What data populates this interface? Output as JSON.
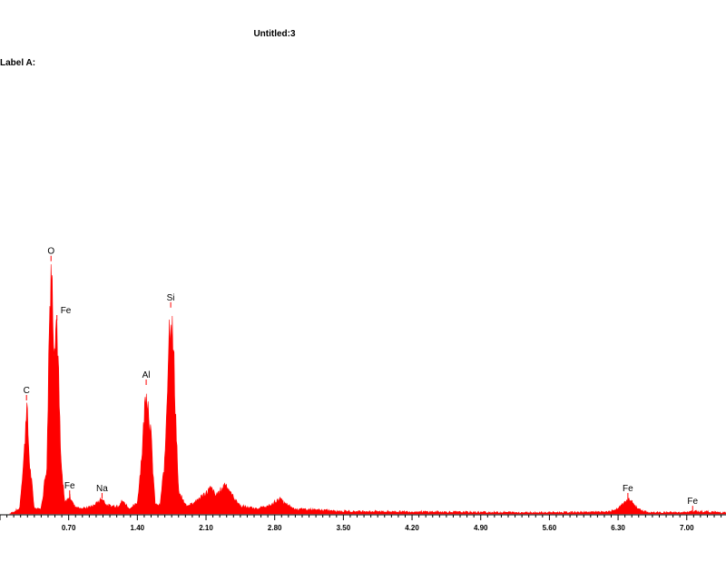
{
  "window": {
    "title": "Untitled:3",
    "label": "Label A:"
  },
  "colors": {
    "spectrum": "#ff0000",
    "axis": "#000000",
    "background": "#ffffff"
  },
  "chart_data": {
    "type": "area",
    "title": "Untitled:3",
    "xlabel": "",
    "ylabel": "",
    "xlim": [
      0.0,
      7.4
    ],
    "ylim": [
      0,
      100
    ],
    "x_ticks": [
      0.7,
      1.4,
      2.1,
      2.8,
      3.5,
      4.2,
      4.9,
      5.6,
      6.3,
      7.0
    ],
    "x_tick_labels": [
      "0.70",
      "1.40",
      "2.10",
      "2.80",
      "3.50",
      "4.20",
      "4.90",
      "5.60",
      "6.30",
      "7.00"
    ],
    "grid": false,
    "peaks": [
      {
        "element": "C",
        "x": 0.27,
        "height": 44
      },
      {
        "element": "O",
        "x": 0.52,
        "height": 98
      },
      {
        "element": "Fe",
        "x": 0.58,
        "height": 75
      },
      {
        "element": "Fe",
        "x": 0.71,
        "height": 7
      },
      {
        "element": "Na",
        "x": 1.04,
        "height": 6
      },
      {
        "element": "Al",
        "x": 1.49,
        "height": 50
      },
      {
        "element": "Si",
        "x": 1.74,
        "height": 80
      },
      {
        "element": "Fe",
        "x": 6.4,
        "height": 6
      },
      {
        "element": "Fe",
        "x": 7.06,
        "height": 1
      }
    ],
    "series": [
      {
        "x": [
          0.1,
          0.2,
          0.25,
          0.27,
          0.3,
          0.35,
          0.42,
          0.48,
          0.5,
          0.52,
          0.55,
          0.58,
          0.62,
          0.66,
          0.71,
          0.76,
          0.85,
          0.95,
          1.04,
          1.1,
          1.2,
          1.25,
          1.32,
          1.4,
          1.45,
          1.49,
          1.53,
          1.58,
          1.63,
          1.68,
          1.72,
          1.74,
          1.77,
          1.82,
          1.9,
          2.0,
          2.1,
          2.15,
          2.2,
          2.25,
          2.3,
          2.35,
          2.45,
          2.6,
          2.75,
          2.85,
          2.9,
          3.0,
          3.5,
          4.2,
          4.9,
          5.6,
          6.2,
          6.3,
          6.4,
          6.5,
          6.6,
          7.0,
          7.06,
          7.4
        ],
        "y": [
          0,
          2,
          25,
          44,
          20,
          2,
          2,
          20,
          70,
          98,
          70,
          75,
          20,
          4,
          7,
          3,
          2,
          3,
          6,
          3,
          3,
          5,
          2,
          4,
          25,
          50,
          35,
          4,
          3,
          20,
          68,
          80,
          60,
          8,
          3,
          5,
          8,
          10,
          7,
          9,
          12,
          8,
          3,
          2,
          3,
          6,
          4,
          2,
          1,
          0.8,
          0.6,
          0.5,
          0.7,
          2,
          6,
          2,
          0.5,
          0.5,
          1,
          0.5
        ]
      }
    ]
  }
}
